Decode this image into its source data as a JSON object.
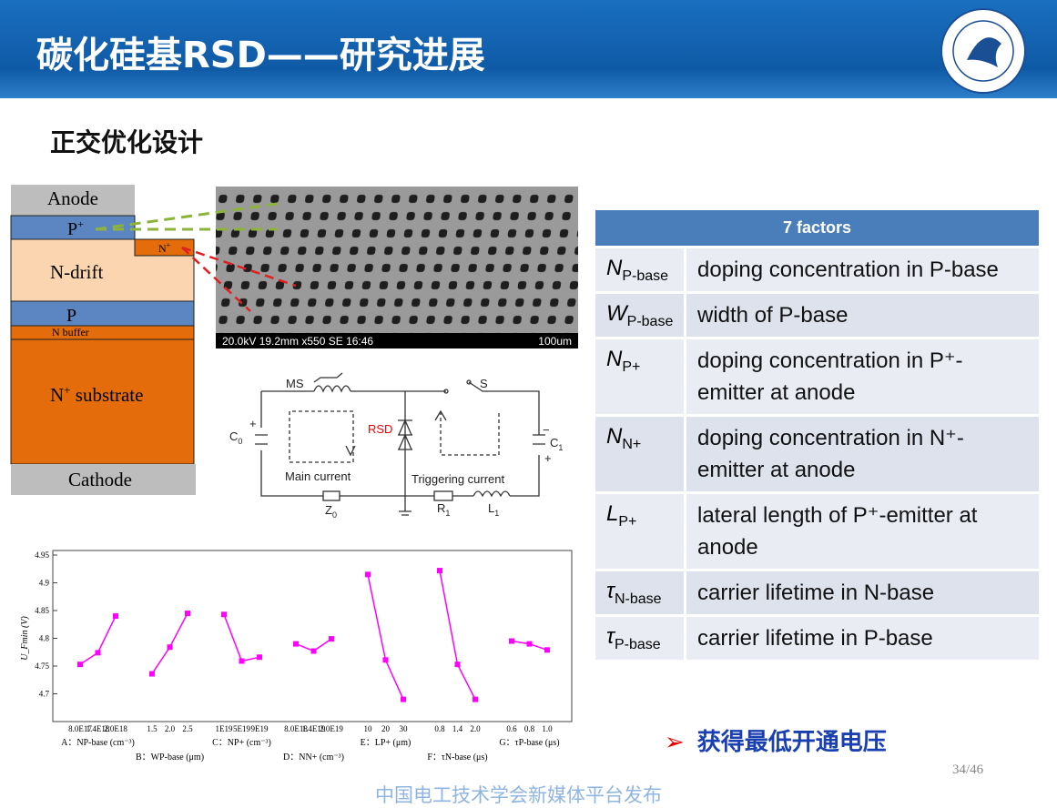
{
  "header": {
    "title": "碳化硅基RSD——研究进展"
  },
  "subtitle": "正交优化设计",
  "device": {
    "anode": "Anode",
    "p_plus": {
      "base": "P",
      "sup": "+"
    },
    "n_plus": {
      "base": "N",
      "sup": "+"
    },
    "n_drift": "N-drift",
    "p": "P",
    "n_buffer": "N buffer",
    "n_substrate": {
      "base": "N",
      "sup": "+",
      "rest": " substrate"
    },
    "cathode": "Cathode"
  },
  "sem": {
    "caption": "20.0kV 19.2mm x550 SE  16:46",
    "scale": "100um"
  },
  "circuit": {
    "ms": "MS",
    "s": "S",
    "rsd": "RSD",
    "c0": {
      "base": "C",
      "sub": "0"
    },
    "c1": {
      "base": "C",
      "sub": "1"
    },
    "main_current": "Main current",
    "triggering_current": "Triggering current",
    "z0": {
      "base": "Z",
      "sub": "0"
    },
    "r1": {
      "base": "R",
      "sub": "1"
    },
    "l1": {
      "base": "L",
      "sub": "1"
    },
    "plus": "+",
    "minus": "−"
  },
  "table": {
    "header": "7 factors",
    "rows": [
      {
        "symbol": "N",
        "sub": "P-base",
        "desc": "doping concentration in P-base"
      },
      {
        "symbol": "W",
        "sub": "P-base",
        "desc": "width of P-base"
      },
      {
        "symbol": "N",
        "sub": "P+",
        "desc": "doping concentration in P⁺-emitter at anode"
      },
      {
        "symbol": "N",
        "sub": "N+",
        "desc": "doping concentration in N⁺-emitter at anode"
      },
      {
        "symbol": "L",
        "sub": "P+",
        "desc": "lateral length of P⁺-emitter at anode"
      },
      {
        "symbol": "τ",
        "sub": "N-base",
        "desc": "carrier lifetime in N-base"
      },
      {
        "symbol": "τ",
        "sub": "P-base",
        "desc": "carrier lifetime in P-base"
      }
    ]
  },
  "chart": {
    "type": "line",
    "ylabel": "U_Fmin (V)",
    "ylim": [
      4.65,
      4.95
    ],
    "yticks": [
      4.7,
      4.75,
      4.8,
      4.85,
      4.9,
      4.95
    ],
    "color": "#ff00ff",
    "groups": [
      {
        "name": "A：NP-base (cm⁻³)",
        "ticks": [
          "8.0E17",
          "1.4E18",
          "2.0E18"
        ],
        "values": [
          4.753,
          4.774,
          4.84
        ]
      },
      {
        "name": "B：WP-base (μm)",
        "ticks": [
          "1.5",
          "2.0",
          "2.5"
        ],
        "values": [
          4.736,
          4.784,
          4.845
        ]
      },
      {
        "name": "C：NP+ (cm⁻³)",
        "ticks": [
          "1E19",
          "5E19",
          "9E19"
        ],
        "values": [
          4.843,
          4.759,
          4.766
        ]
      },
      {
        "name": "D：NN+ (cm⁻³)",
        "ticks": [
          "8.0E18",
          "1.4E19",
          "2.0E19"
        ],
        "values": [
          4.79,
          4.777,
          4.799
        ]
      },
      {
        "name": "E：LP+ (μm)",
        "ticks": [
          "10",
          "20",
          "30"
        ],
        "values": [
          4.915,
          4.761,
          4.69
        ]
      },
      {
        "name": "F：τN-base (μs)",
        "ticks": [
          "0.8",
          "1.4",
          "2.0"
        ],
        "values": [
          4.922,
          4.753,
          4.69
        ]
      },
      {
        "name": "G：τP-base (μs)",
        "ticks": [
          "0.6",
          "0.8",
          "1.0"
        ],
        "values": [
          4.795,
          4.79,
          4.779
        ]
      }
    ]
  },
  "conclusion": "获得最低开通电压",
  "page_number": "34/46",
  "watermark": "中国电工技术学会新媒体平台发布"
}
